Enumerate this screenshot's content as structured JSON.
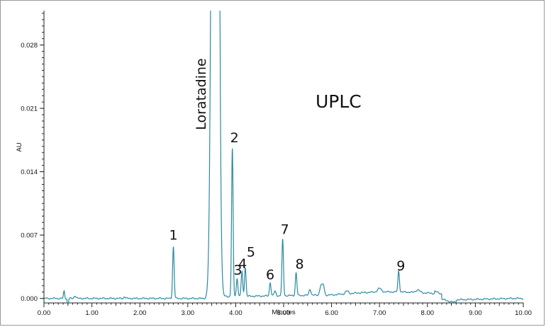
{
  "chart_data": {
    "type": "line",
    "title": "UPLC",
    "xlabel": "Minutes",
    "ylabel": "AU",
    "xlim": [
      0,
      10
    ],
    "ylim": [
      -0.0005,
      0.0318
    ],
    "x_ticks": [
      "0.00",
      "1.00",
      "2.00",
      "3.00",
      "4.00",
      "5.00",
      "6.00",
      "7.00",
      "8.00",
      "9.00",
      "10.00"
    ],
    "y_ticks": [
      "0.000",
      "0.007",
      "0.014",
      "0.021",
      "0.028"
    ],
    "series_color": "#2a8aa0",
    "drug_peak": {
      "label": "Loratadine",
      "x": 3.58,
      "y": 0.2
    },
    "peaks": [
      {
        "label": "1",
        "x": 2.7,
        "y": 0.0057
      },
      {
        "label": "2",
        "x": 3.93,
        "y": 0.0163
      },
      {
        "label": "3",
        "x": 4.03,
        "y": 0.002
      },
      {
        "label": "4",
        "x": 4.13,
        "y": 0.0027
      },
      {
        "label": "5",
        "x": 4.2,
        "y": 0.0032
      },
      {
        "label": "6",
        "x": 4.72,
        "y": 0.0015
      },
      {
        "label": "7",
        "x": 4.98,
        "y": 0.0062
      },
      {
        "label": "8",
        "x": 5.26,
        "y": 0.0025
      },
      {
        "label": "9",
        "x": 7.4,
        "y": 0.0023
      }
    ]
  }
}
